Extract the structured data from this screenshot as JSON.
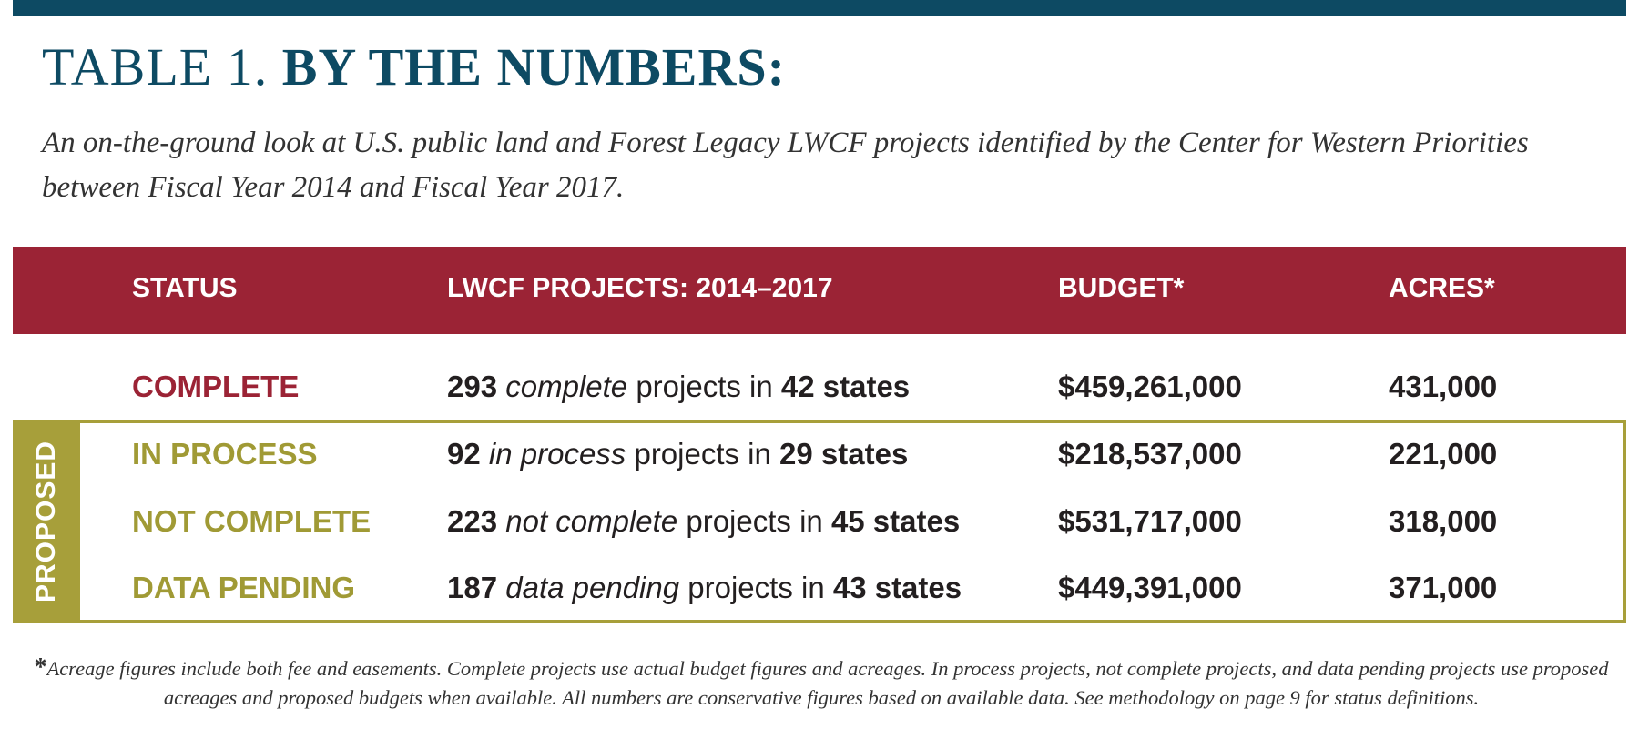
{
  "title": {
    "prefix": "TABLE 1.",
    "main": "BY THE NUMBERS:"
  },
  "subtitle": "An on-the-ground look at U.S. public land and Forest Legacy LWCF projects identified by the Center for Western Priorities between Fiscal Year 2014 and Fiscal Year 2017.",
  "table": {
    "headers": [
      "STATUS",
      "LWCF PROJECTS: 2014–2017",
      "BUDGET*",
      "ACRES*"
    ],
    "group_label": "PROPOSED",
    "rows": [
      {
        "status": "COMPLETE",
        "projects": [
          "293",
          "complete",
          "projects in",
          "42 states"
        ],
        "budget": "$459,261,000",
        "acres": "431,000"
      },
      {
        "status": "IN PROCESS",
        "projects": [
          "92",
          "in process",
          "projects in",
          "29 states"
        ],
        "budget": "$218,537,000",
        "acres": "221,000"
      },
      {
        "status": "NOT COMPLETE",
        "projects": [
          "223",
          "not complete",
          "projects in",
          "45 states"
        ],
        "budget": "$531,717,000",
        "acres": "318,000"
      },
      {
        "status": "DATA PENDING",
        "projects": [
          "187",
          "data pending",
          "projects in",
          "43 states"
        ],
        "budget": "$449,391,000",
        "acres": "371,000"
      }
    ]
  },
  "footnote": {
    "mark": "*",
    "text": "Acreage figures include both fee and easements. Complete projects use actual budget figures and acreages. In process projects, not complete projects, and data pending projects use proposed acreages and proposed budgets when available. All numbers are conservative figures based on available data. See methodology on page 9 for status definitions."
  }
}
